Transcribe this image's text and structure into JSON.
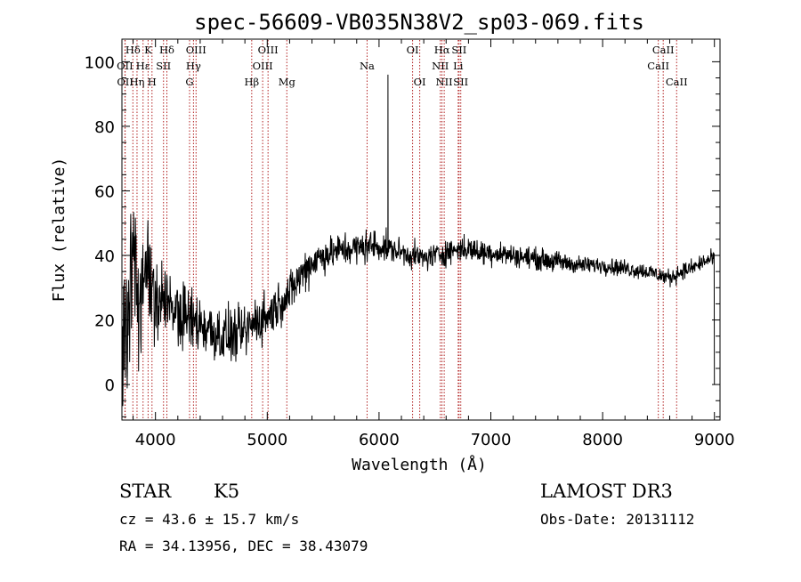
{
  "chart_data": {
    "type": "line",
    "title": "spec-56609-VB035N38V2_sp03-069.fits",
    "xlabel": "Wavelength (Å)",
    "ylabel": "Flux (relative)",
    "xlim": [
      3700,
      9050
    ],
    "ylim": [
      -11,
      107
    ],
    "xticks": [
      4000,
      5000,
      6000,
      7000,
      8000,
      9000
    ],
    "yticks": [
      0,
      20,
      40,
      60,
      80,
      100
    ],
    "series": [
      {
        "name": "flux",
        "color": "#000000",
        "x": [
          3700,
          3760,
          3800,
          3850,
          3900,
          3950,
          4000,
          4050,
          4100,
          4200,
          4300,
          4400,
          4500,
          4600,
          4700,
          4800,
          4900,
          5000,
          5100,
          5200,
          5300,
          5400,
          5500,
          5600,
          5700,
          5800,
          5900,
          6000,
          6100,
          6200,
          6300,
          6400,
          6500,
          6600,
          6700,
          6800,
          6900,
          7000,
          7200,
          7400,
          7600,
          7800,
          8000,
          8200,
          8400,
          8500,
          8600,
          8700,
          8800,
          8900,
          9000
        ],
        "y": [
          5,
          28,
          40,
          24,
          33,
          30,
          26,
          28,
          27,
          22,
          20,
          19,
          17,
          15,
          15,
          16,
          20,
          21,
          25,
          28,
          34,
          38,
          40,
          41,
          42,
          42,
          43,
          43,
          42,
          41,
          40,
          39,
          40,
          41,
          42,
          42,
          41,
          41,
          40,
          39,
          38,
          37,
          37,
          36,
          35,
          34,
          33,
          35,
          36,
          38,
          39
        ],
        "noise": [
          25,
          18,
          16,
          14,
          13,
          12,
          11,
          10,
          9,
          8,
          8,
          7,
          7,
          7,
          6,
          6,
          6,
          6,
          5,
          5,
          5,
          5,
          4,
          4,
          4,
          4,
          4,
          4,
          3,
          3,
          3,
          3,
          3,
          3,
          3,
          3,
          3,
          3,
          2.5,
          2.5,
          2.5,
          2,
          2,
          2,
          2,
          2,
          2,
          2,
          2,
          2,
          2
        ]
      }
    ],
    "features": [
      {
        "wavelength": 6080,
        "peak": 96,
        "type": "spike"
      },
      {
        "wavelength": 9000,
        "peak": 0,
        "type": "edge"
      }
    ],
    "spectral_lines": [
      {
        "label": "Hδ",
        "wavelength": 3798,
        "row": 1
      },
      {
        "label": "OII",
        "wavelength": 3727,
        "row": 2
      },
      {
        "label": "OII",
        "wavelength": 3729,
        "row": 3
      },
      {
        "label": "Hε",
        "wavelength": 3889,
        "row": 2
      },
      {
        "label": "Hη",
        "wavelength": 3835,
        "row": 3
      },
      {
        "label": "K",
        "wavelength": 3934,
        "row": 1
      },
      {
        "label": "H",
        "wavelength": 3969,
        "row": 3
      },
      {
        "label": "SII",
        "wavelength": 4072,
        "row": 2
      },
      {
        "label": "Hδ",
        "wavelength": 4102,
        "row": 1
      },
      {
        "label": "OIII",
        "wavelength": 4363,
        "row": 1
      },
      {
        "label": "Hγ",
        "wavelength": 4340,
        "row": 2
      },
      {
        "label": "G",
        "wavelength": 4305,
        "row": 3
      },
      {
        "label": "Hβ",
        "wavelength": 4861,
        "row": 3
      },
      {
        "label": "OIII",
        "wavelength": 4959,
        "row": 2
      },
      {
        "label": "OIII",
        "wavelength": 5007,
        "row": 1
      },
      {
        "label": "Mg",
        "wavelength": 5175,
        "row": 3
      },
      {
        "label": "Na",
        "wavelength": 5893,
        "row": 2
      },
      {
        "label": "OI",
        "wavelength": 6300,
        "row": 1
      },
      {
        "label": "OI",
        "wavelength": 6364,
        "row": 3
      },
      {
        "label": "Hα",
        "wavelength": 6563,
        "row": 1
      },
      {
        "label": "NII",
        "wavelength": 6548,
        "row": 2
      },
      {
        "label": "NII",
        "wavelength": 6583,
        "row": 3
      },
      {
        "label": "SII",
        "wavelength": 6716,
        "row": 1
      },
      {
        "label": "Li",
        "wavelength": 6708,
        "row": 2
      },
      {
        "label": "SII",
        "wavelength": 6731,
        "row": 3
      },
      {
        "label": "CaII",
        "wavelength": 8542,
        "row": 1
      },
      {
        "label": "CaII",
        "wavelength": 8498,
        "row": 2
      },
      {
        "label": "CaII",
        "wavelength": 8662,
        "row": 3
      }
    ],
    "line_marker_color": "#b22222"
  },
  "info": {
    "object_class": "STAR",
    "subclass": "K5",
    "survey": "LAMOST DR3",
    "cz": "cz = 43.6 ± 15.7 km/s",
    "obs_date": "Obs-Date: 20131112",
    "coords": "RA =  34.13956, DEC =  38.43079"
  }
}
